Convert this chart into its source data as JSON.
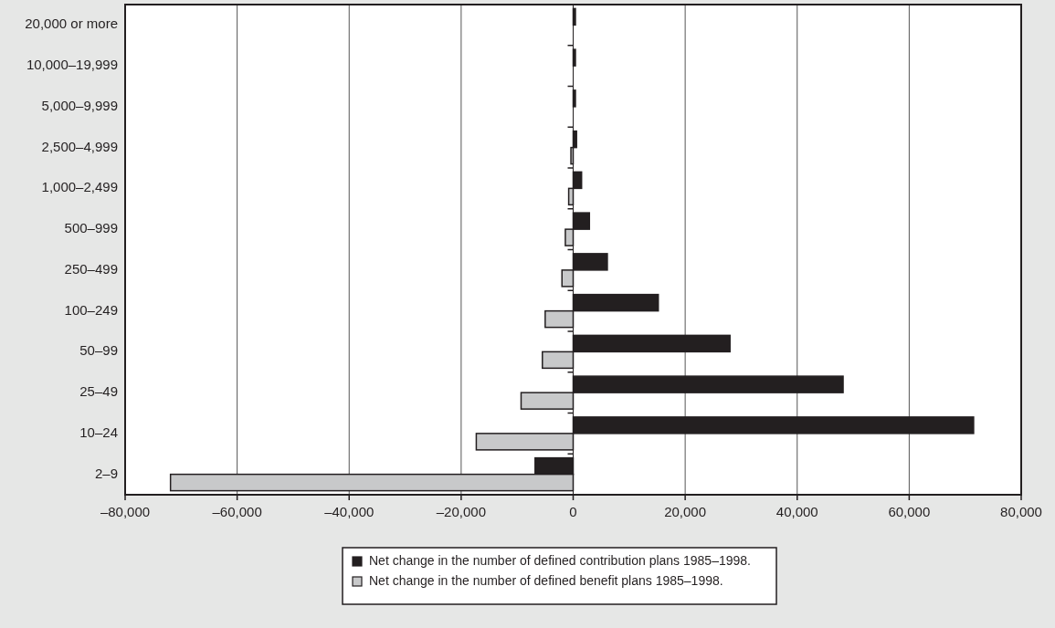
{
  "chart_data": {
    "type": "bar",
    "orientation": "horizontal",
    "categories": [
      "20,000 or more",
      "10,000–19,999",
      "5,000–9,999",
      "2,500–4,999",
      "1,000–2,499",
      "500–999",
      "250–499",
      "100–249",
      "50–99",
      "25–49",
      "10–24",
      "2–9"
    ],
    "series": [
      {
        "name": "Net change in the number of defined contribution plans 1985–1998.",
        "color": "#231f20",
        "values": [
          400,
          400,
          400,
          600,
          1500,
          2900,
          6100,
          15200,
          28000,
          48200,
          71500,
          -6800
        ]
      },
      {
        "name": "Net change in the number of defined benefit plans 1985–1998.",
        "color": "#c8c9ca",
        "values": [
          null,
          null,
          null,
          -400,
          -800,
          -1400,
          -2000,
          -5000,
          -5500,
          -9300,
          -17300,
          -71900
        ]
      }
    ],
    "xlim": [
      -80000,
      80000
    ],
    "xticks": [
      {
        "value": -80000,
        "label": "–80,000"
      },
      {
        "value": -60000,
        "label": "–60,000"
      },
      {
        "value": -40000,
        "label": "–40,000"
      },
      {
        "value": -20000,
        "label": "–20,000"
      },
      0,
      {
        "value": 20000,
        "label": "20,000"
      },
      {
        "value": 40000,
        "label": "40,000"
      },
      {
        "value": 60000,
        "label": "60,000"
      },
      {
        "value": 80000,
        "label": "80,000"
      }
    ],
    "grid": "x",
    "legend": "bottom"
  }
}
